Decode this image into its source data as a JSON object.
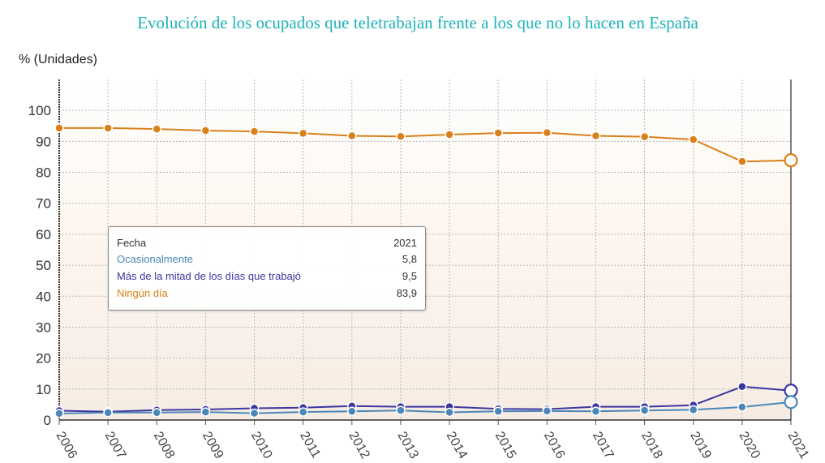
{
  "chart_title": "Evolución de los ocupados que teletrabajan frente a los que no lo hacen en España",
  "y_unit": "% (Unidades)",
  "tooltip": {
    "header_label": "Fecha",
    "header_value": "2021",
    "rows": [
      {
        "label": "Ocasionalmente",
        "value": "5,8",
        "color": "#4a87b8"
      },
      {
        "label": "Más de la mitad de los días que trabajó",
        "value": "9,5",
        "color": "#3d36a0"
      },
      {
        "label": "Ningún día",
        "value": "83,9",
        "color": "#d98019"
      }
    ]
  },
  "chart_data": {
    "type": "line",
    "title": "Evolución de los ocupados que teletrabajan frente a los que no lo hacen en España",
    "ylabel": "% (Unidades)",
    "xlabel": "",
    "ylim": [
      0,
      100
    ],
    "yticks": [
      0,
      10,
      20,
      30,
      40,
      50,
      60,
      70,
      80,
      90,
      100
    ],
    "grid": true,
    "categories": [
      "2006",
      "2007",
      "2008",
      "2009",
      "2010",
      "2011",
      "2012",
      "2013",
      "2014",
      "2015",
      "2016",
      "2017",
      "2018",
      "2019",
      "2020",
      "2021"
    ],
    "series": [
      {
        "name": "Ningún día",
        "color": "#d98019",
        "values": [
          94.3,
          94.3,
          94.0,
          93.5,
          93.2,
          92.6,
          91.8,
          91.6,
          92.2,
          92.7,
          92.8,
          91.8,
          91.5,
          90.6,
          83.5,
          83.9
        ]
      },
      {
        "name": "Más de la mitad de los días que trabajó",
        "color": "#3d36a0",
        "values": [
          3.0,
          2.7,
          3.2,
          3.4,
          3.8,
          4.0,
          4.5,
          4.3,
          4.3,
          3.6,
          3.5,
          4.3,
          4.3,
          4.8,
          10.8,
          9.5
        ]
      },
      {
        "name": "Ocasionalmente",
        "color": "#4a87b8",
        "values": [
          2.1,
          2.4,
          2.4,
          2.6,
          2.2,
          2.6,
          2.8,
          3.1,
          2.5,
          2.8,
          2.9,
          2.8,
          3.1,
          3.3,
          4.2,
          5.8
        ]
      }
    ]
  }
}
